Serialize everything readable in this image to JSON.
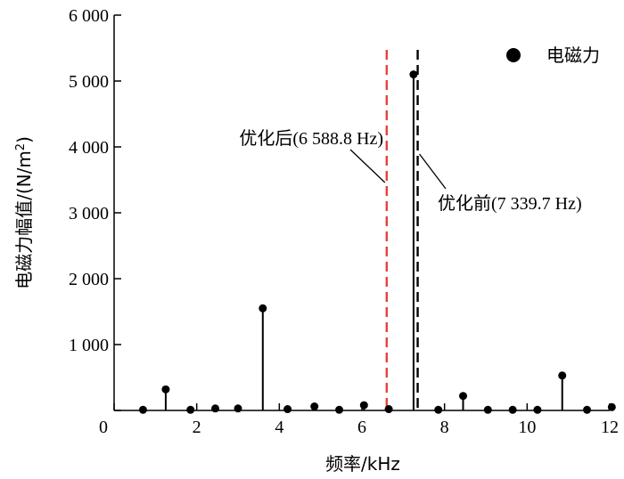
{
  "chart_data": {
    "type": "stem",
    "xlabel": "频率/kHz",
    "ylabel_main": "电磁力幅值/(N/m",
    "ylabel_sup": "2",
    "ylabel_close": ")",
    "xlim": [
      0,
      12
    ],
    "ylim": [
      0,
      6000
    ],
    "x_ticks": [
      0,
      2,
      4,
      6,
      8,
      10,
      12
    ],
    "x_tick_labels": [
      "0",
      "2",
      "4",
      "6",
      "8",
      "10",
      "12"
    ],
    "y_ticks": [
      0,
      1000,
      2000,
      3000,
      4000,
      5000,
      6000
    ],
    "y_tick_labels": [
      "0",
      "1 000",
      "2 000",
      "3 000",
      "4 000",
      "5 000",
      "6 000"
    ],
    "legend": {
      "label": "电磁力",
      "position": "top-right"
    },
    "series": [
      {
        "name": "电磁力",
        "x": [
          0.7,
          1.25,
          1.85,
          2.45,
          3.0,
          3.6,
          4.2,
          4.85,
          5.45,
          6.05,
          6.65,
          7.25,
          7.85,
          8.45,
          9.05,
          9.65,
          10.25,
          10.85,
          11.45,
          12.05
        ],
        "y": [
          10,
          320,
          10,
          30,
          30,
          1550,
          20,
          60,
          10,
          80,
          20,
          5100,
          10,
          220,
          10,
          10,
          10,
          530,
          10,
          50
        ]
      }
    ],
    "vlines": [
      {
        "x": 6.6,
        "color": "#e8413b",
        "style": "dashed",
        "label": "优化后(6 588.8 Hz)"
      },
      {
        "x": 7.35,
        "color": "#000000",
        "style": "dashed",
        "label": "优化前(7 339.7 Hz)"
      }
    ]
  }
}
